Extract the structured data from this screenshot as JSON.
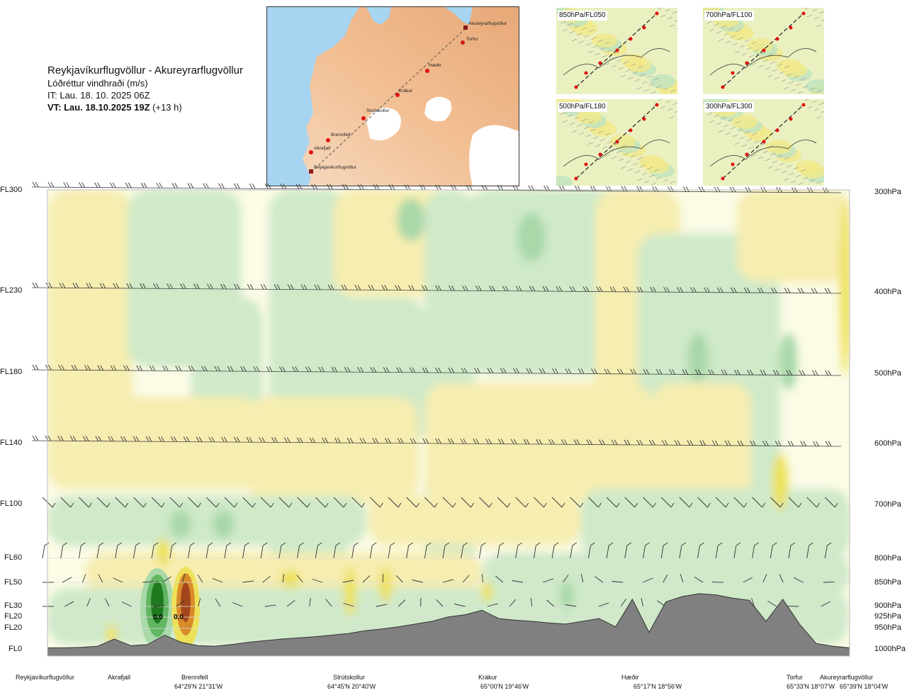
{
  "header": {
    "route": "Reykjavíkurflugvöllur - Akureyrarflugvöllur",
    "quantity": "Lóðréttur vindhraði (m/s)",
    "init_time": "IT: Lau. 18. 10. 2025 06Z",
    "valid_label": "VT: Lau. 18.10.2025 19Z",
    "valid_offset": "(+13 h)"
  },
  "main_map": {
    "stations": [
      "Akureyrarflugvöllur",
      "Torfur",
      "Hæðir",
      "Krákur",
      "Strútskollur",
      "Brennifell",
      "Akrafjall",
      "Reykjavíkurflugvöllur"
    ]
  },
  "mini_maps": [
    {
      "label": "850hPa/FL050"
    },
    {
      "label": "700hPa/FL100"
    },
    {
      "label": "500hPa/FL180"
    },
    {
      "label": "300hPa/FL300"
    }
  ],
  "chart_data": {
    "type": "heatmap",
    "description_kind": "vertical cross-section of vertical wind speed along route",
    "flight_levels": [
      "FL300",
      "FL230",
      "FL180",
      "FL140",
      "FL100",
      "FL60",
      "FL50",
      "FL30",
      "FL20",
      "FL20",
      "FL0"
    ],
    "pressure_levels": [
      "300hPa",
      "400hPa",
      "500hPa",
      "600hPa",
      "700hPa",
      "800hPa",
      "850hPa",
      "900hPa",
      "925hPa",
      "950hPa",
      "1000hPa"
    ],
    "annotations": [
      "0.0",
      "0.0"
    ],
    "locations": [
      {
        "name": "Reykjavíkurflugvöllur",
        "coord": ""
      },
      {
        "name": "Akrafjall",
        "coord": ""
      },
      {
        "name": "Brennifell",
        "coord": "64°29'N 21°31'W"
      },
      {
        "name": "Strútskollur",
        "coord": "64°45'N 20°40'W"
      },
      {
        "name": "Krákur",
        "coord": "65°00'N 19°46'W"
      },
      {
        "name": "Hæðir",
        "coord": "65°17'N 18°56'W"
      },
      {
        "name": "Torfur",
        "coord": "65°33'N 18°07'W"
      },
      {
        "name": "Akureyrarflugvöllur",
        "coord": "65°39'N 18°04'W"
      }
    ],
    "terrain_profile_m_rel": [
      0.02,
      0.02,
      0.03,
      0.05,
      0.18,
      0.06,
      0.08,
      0.25,
      0.12,
      0.06,
      0.05,
      0.08,
      0.12,
      0.15,
      0.18,
      0.2,
      0.22,
      0.25,
      0.28,
      0.33,
      0.36,
      0.4,
      0.45,
      0.5,
      0.58,
      0.62,
      0.7,
      0.55,
      0.52,
      0.5,
      0.47,
      0.45,
      0.5,
      0.55,
      0.4,
      0.9,
      0.3,
      0.85,
      0.95,
      1.0,
      0.98,
      0.92,
      0.88,
      0.5,
      0.9,
      0.45,
      0.1,
      0.05,
      0.02
    ],
    "colors": {
      "strong_down": "#1f7a1f",
      "down": "#62b562",
      "weak_down": "#a9d8a9",
      "very_weak_down": "#cfe9c9",
      "neutral": "#fbfbe6",
      "very_weak_up": "#f6edb0",
      "weak_up": "#ede15a",
      "up": "#d98b2b",
      "strong_up": "#a4461b",
      "terrain": "#808080"
    }
  }
}
